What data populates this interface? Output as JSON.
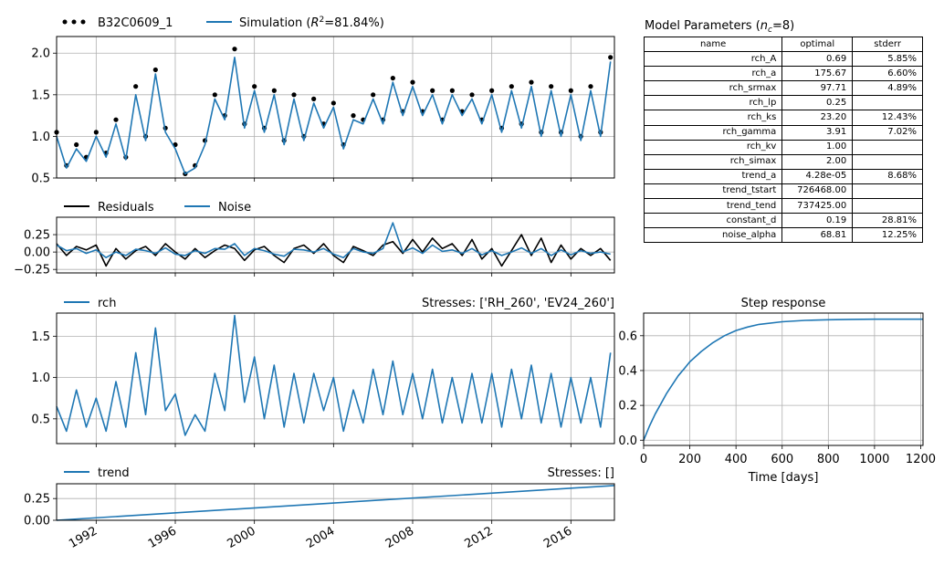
{
  "colors": {
    "observed": "#000000",
    "simulation": "#1f77b4",
    "noise": "#1f77b4",
    "residuals": "#000000",
    "grid": "#b0b0b0"
  },
  "chart_data": [
    {
      "type": "line",
      "panel": "main",
      "legend": [
        "B32C0609_1",
        "Simulation (R²=81.84%)"
      ],
      "legend_placement": "top-left, outside",
      "grid": true,
      "xlim": [
        1990.0,
        2018.2
      ],
      "ylim": [
        0.5,
        2.2
      ],
      "yticks": [
        "0.5",
        "1.0",
        "1.5",
        "2.0"
      ],
      "x": [
        1990.0,
        1990.5,
        1991.0,
        1991.5,
        1992.0,
        1992.5,
        1993.0,
        1993.5,
        1994.0,
        1994.5,
        1995.0,
        1995.5,
        1996.0,
        1996.5,
        1997.0,
        1997.5,
        1998.0,
        1998.5,
        1999.0,
        1999.5,
        2000.0,
        2000.5,
        2001.0,
        2001.5,
        2002.0,
        2002.5,
        2003.0,
        2003.5,
        2004.0,
        2004.5,
        2005.0,
        2005.5,
        2006.0,
        2006.5,
        2007.0,
        2007.5,
        2008.0,
        2008.5,
        2009.0,
        2009.5,
        2010.0,
        2010.5,
        2011.0,
        2011.5,
        2012.0,
        2012.5,
        2013.0,
        2013.5,
        2014.0,
        2014.5,
        2015.0,
        2015.5,
        2016.0,
        2016.5,
        2017.0,
        2017.5,
        2018.0
      ],
      "series": [
        {
          "name": "B32C0609_1",
          "style": "points",
          "values": [
            1.05,
            0.65,
            0.9,
            0.75,
            1.05,
            0.8,
            1.2,
            0.75,
            1.6,
            1.0,
            1.8,
            1.1,
            0.9,
            0.55,
            0.65,
            0.95,
            1.5,
            1.25,
            2.05,
            1.15,
            1.6,
            1.1,
            1.55,
            0.95,
            1.5,
            1.0,
            1.45,
            1.15,
            1.4,
            0.9,
            1.25,
            1.2,
            1.5,
            1.2,
            1.7,
            1.3,
            1.65,
            1.3,
            1.55,
            1.2,
            1.55,
            1.3,
            1.5,
            1.2,
            1.55,
            1.1,
            1.6,
            1.15,
            1.65,
            1.05,
            1.6,
            1.05,
            1.55,
            1.0,
            1.6,
            1.05,
            1.95
          ]
        },
        {
          "name": "Simulation",
          "style": "line",
          "values": [
            1.0,
            0.62,
            0.85,
            0.7,
            1.0,
            0.75,
            1.15,
            0.72,
            1.5,
            0.95,
            1.75,
            1.05,
            0.85,
            0.55,
            0.62,
            0.9,
            1.45,
            1.2,
            1.95,
            1.1,
            1.55,
            1.05,
            1.5,
            0.9,
            1.45,
            0.95,
            1.4,
            1.1,
            1.35,
            0.85,
            1.2,
            1.15,
            1.45,
            1.15,
            1.65,
            1.25,
            1.6,
            1.25,
            1.5,
            1.15,
            1.5,
            1.25,
            1.45,
            1.15,
            1.5,
            1.05,
            1.55,
            1.1,
            1.6,
            1.0,
            1.55,
            1.0,
            1.5,
            0.95,
            1.55,
            1.0,
            1.9
          ]
        }
      ]
    },
    {
      "type": "line",
      "panel": "residuals",
      "legend": [
        "Residuals",
        "Noise"
      ],
      "legend_placement": "top-left, outside",
      "grid": true,
      "xlim": [
        1990.0,
        2018.2
      ],
      "ylim": [
        -0.3,
        0.5
      ],
      "yticks": [
        "−0.25",
        "0.00",
        "0.25"
      ],
      "x": [
        1990.0,
        1990.5,
        1991.0,
        1991.5,
        1992.0,
        1992.5,
        1993.0,
        1993.5,
        1994.0,
        1994.5,
        1995.0,
        1995.5,
        1996.0,
        1996.5,
        1997.0,
        1997.5,
        1998.0,
        1998.5,
        1999.0,
        1999.5,
        2000.0,
        2000.5,
        2001.0,
        2001.5,
        2002.0,
        2002.5,
        2003.0,
        2003.5,
        2004.0,
        2004.5,
        2005.0,
        2005.5,
        2006.0,
        2006.5,
        2007.0,
        2007.5,
        2008.0,
        2008.5,
        2009.0,
        2009.5,
        2010.0,
        2010.5,
        2011.0,
        2011.5,
        2012.0,
        2012.5,
        2013.0,
        2013.5,
        2014.0,
        2014.5,
        2015.0,
        2015.5,
        2016.0,
        2016.5,
        2017.0,
        2017.5,
        2018.0
      ],
      "series": [
        {
          "name": "Residuals",
          "values": [
            0.12,
            -0.05,
            0.08,
            0.03,
            0.1,
            -0.2,
            0.05,
            -0.1,
            0.02,
            0.08,
            -0.05,
            0.12,
            0.0,
            -0.1,
            0.05,
            -0.08,
            0.02,
            0.1,
            0.05,
            -0.12,
            0.03,
            0.08,
            -0.05,
            -0.15,
            0.05,
            0.1,
            -0.02,
            0.12,
            -0.05,
            -0.15,
            0.08,
            0.02,
            -0.05,
            0.1,
            0.15,
            -0.02,
            0.18,
            0.0,
            0.2,
            0.05,
            0.12,
            -0.05,
            0.18,
            -0.1,
            0.05,
            -0.2,
            0.02,
            0.25,
            -0.05,
            0.2,
            -0.15,
            0.1,
            -0.1,
            0.05,
            -0.05,
            0.05,
            -0.12
          ]
        },
        {
          "name": "Noise",
          "values": [
            0.1,
            0.02,
            0.05,
            -0.02,
            0.03,
            -0.08,
            0.0,
            -0.05,
            0.04,
            0.02,
            -0.02,
            0.06,
            -0.03,
            -0.05,
            0.02,
            -0.02,
            0.05,
            0.04,
            0.12,
            -0.05,
            0.05,
            0.02,
            -0.03,
            -0.06,
            0.04,
            0.03,
            0.0,
            0.05,
            -0.03,
            -0.08,
            0.05,
            0.0,
            -0.02,
            0.05,
            0.42,
            0.0,
            0.06,
            -0.02,
            0.1,
            0.01,
            0.03,
            -0.02,
            0.05,
            -0.04,
            0.02,
            -0.05,
            0.0,
            0.06,
            -0.02,
            0.05,
            -0.05,
            0.03,
            -0.04,
            0.02,
            -0.02,
            0.0,
            -0.03
          ]
        }
      ]
    },
    {
      "type": "line",
      "panel": "rch",
      "title_right": "Stresses: ['RH_260', 'EV24_260']",
      "legend": [
        "rch"
      ],
      "legend_placement": "top-left, outside",
      "grid": true,
      "xlim": [
        1990.0,
        2018.2
      ],
      "ylim": [
        0.2,
        1.78
      ],
      "yticks": [
        "0.5",
        "1.0",
        "1.5"
      ],
      "x": [
        1990.0,
        1990.5,
        1991.0,
        1991.5,
        1992.0,
        1992.5,
        1993.0,
        1993.5,
        1994.0,
        1994.5,
        1995.0,
        1995.5,
        1996.0,
        1996.5,
        1997.0,
        1997.5,
        1998.0,
        1998.5,
        1999.0,
        1999.5,
        2000.0,
        2000.5,
        2001.0,
        2001.5,
        2002.0,
        2002.5,
        2003.0,
        2003.5,
        2004.0,
        2004.5,
        2005.0,
        2005.5,
        2006.0,
        2006.5,
        2007.0,
        2007.5,
        2008.0,
        2008.5,
        2009.0,
        2009.5,
        2010.0,
        2010.5,
        2011.0,
        2011.5,
        2012.0,
        2012.5,
        2013.0,
        2013.5,
        2014.0,
        2014.5,
        2015.0,
        2015.5,
        2016.0,
        2016.5,
        2017.0,
        2017.5,
        2018.0
      ],
      "series": [
        {
          "name": "rch",
          "values": [
            0.65,
            0.35,
            0.85,
            0.4,
            0.75,
            0.35,
            0.95,
            0.4,
            1.3,
            0.55,
            1.6,
            0.6,
            0.8,
            0.3,
            0.55,
            0.35,
            1.05,
            0.6,
            1.75,
            0.7,
            1.25,
            0.5,
            1.15,
            0.4,
            1.05,
            0.45,
            1.05,
            0.6,
            1.0,
            0.35,
            0.85,
            0.45,
            1.1,
            0.55,
            1.2,
            0.55,
            1.05,
            0.5,
            1.1,
            0.45,
            1.0,
            0.45,
            1.05,
            0.45,
            1.05,
            0.4,
            1.1,
            0.5,
            1.15,
            0.45,
            1.05,
            0.4,
            1.0,
            0.45,
            1.0,
            0.4,
            1.3
          ]
        }
      ]
    },
    {
      "type": "line",
      "panel": "trend",
      "title_right": "Stresses: []",
      "legend": [
        "trend"
      ],
      "legend_placement": "top-left, outside",
      "grid": true,
      "xlim": [
        1990.0,
        2018.2
      ],
      "ylim": [
        0.0,
        0.42
      ],
      "yticks": [
        "0.00",
        "0.25"
      ],
      "xticks": [
        "1992",
        "1996",
        "2000",
        "2004",
        "2008",
        "2012",
        "2016"
      ],
      "x": [
        1990.0,
        2018.2
      ],
      "series": [
        {
          "name": "trend",
          "values": [
            0.0,
            0.4
          ]
        }
      ]
    },
    {
      "type": "line",
      "panel": "step",
      "title": "Step response",
      "xlabel": "Time [days]",
      "grid": true,
      "xlim": [
        0,
        1210
      ],
      "ylim": [
        -0.03,
        0.73
      ],
      "xticks": [
        "0",
        "200",
        "400",
        "600",
        "800",
        "1000",
        "1200"
      ],
      "yticks": [
        "0.0",
        "0.2",
        "0.4",
        "0.6"
      ],
      "x": [
        0,
        25,
        50,
        75,
        100,
        125,
        150,
        175,
        200,
        250,
        300,
        350,
        400,
        450,
        500,
        600,
        700,
        800,
        900,
        1000,
        1100,
        1210
      ],
      "series": [
        {
          "values": [
            0.0,
            0.08,
            0.15,
            0.21,
            0.27,
            0.32,
            0.37,
            0.41,
            0.45,
            0.51,
            0.56,
            0.6,
            0.63,
            0.65,
            0.665,
            0.68,
            0.688,
            0.692,
            0.694,
            0.695,
            0.695,
            0.695
          ]
        }
      ]
    }
  ],
  "labels": {
    "main_legend_obs": "B32C0609_1",
    "main_legend_sim_prefix": "Simulation (",
    "main_legend_sim_r": "R",
    "main_legend_sim_sup": "2",
    "main_legend_sim_suffix": "=81.84%)",
    "res_legend_res": "Residuals",
    "res_legend_noise": "Noise",
    "rch_legend": "rch",
    "rch_stresses": "Stresses: ['RH_260', 'EV24_260']",
    "trend_legend": "trend",
    "trend_stresses": "Stresses: []",
    "step_title": "Step response",
    "step_xlabel": "Time [days]",
    "params_title_prefix": "Model Parameters (",
    "params_title_n": "n",
    "params_title_sub": "c",
    "params_title_suffix": "=8)"
  },
  "params": {
    "headers": [
      "name",
      "optimal",
      "stderr"
    ],
    "rows": [
      [
        "rch_A",
        "0.69",
        "5.85%"
      ],
      [
        "rch_a",
        "175.67",
        "6.60%"
      ],
      [
        "rch_srmax",
        "97.71",
        "4.89%"
      ],
      [
        "rch_lp",
        "0.25",
        ""
      ],
      [
        "rch_ks",
        "23.20",
        "12.43%"
      ],
      [
        "rch_gamma",
        "3.91",
        "7.02%"
      ],
      [
        "rch_kv",
        "1.00",
        ""
      ],
      [
        "rch_simax",
        "2.00",
        ""
      ],
      [
        "trend_a",
        "4.28e-05",
        "8.68%"
      ],
      [
        "trend_tstart",
        "726468.00",
        ""
      ],
      [
        "trend_tend",
        "737425.00",
        ""
      ],
      [
        "constant_d",
        "0.19",
        "28.81%"
      ],
      [
        "noise_alpha",
        "68.81",
        "12.25%"
      ]
    ]
  }
}
